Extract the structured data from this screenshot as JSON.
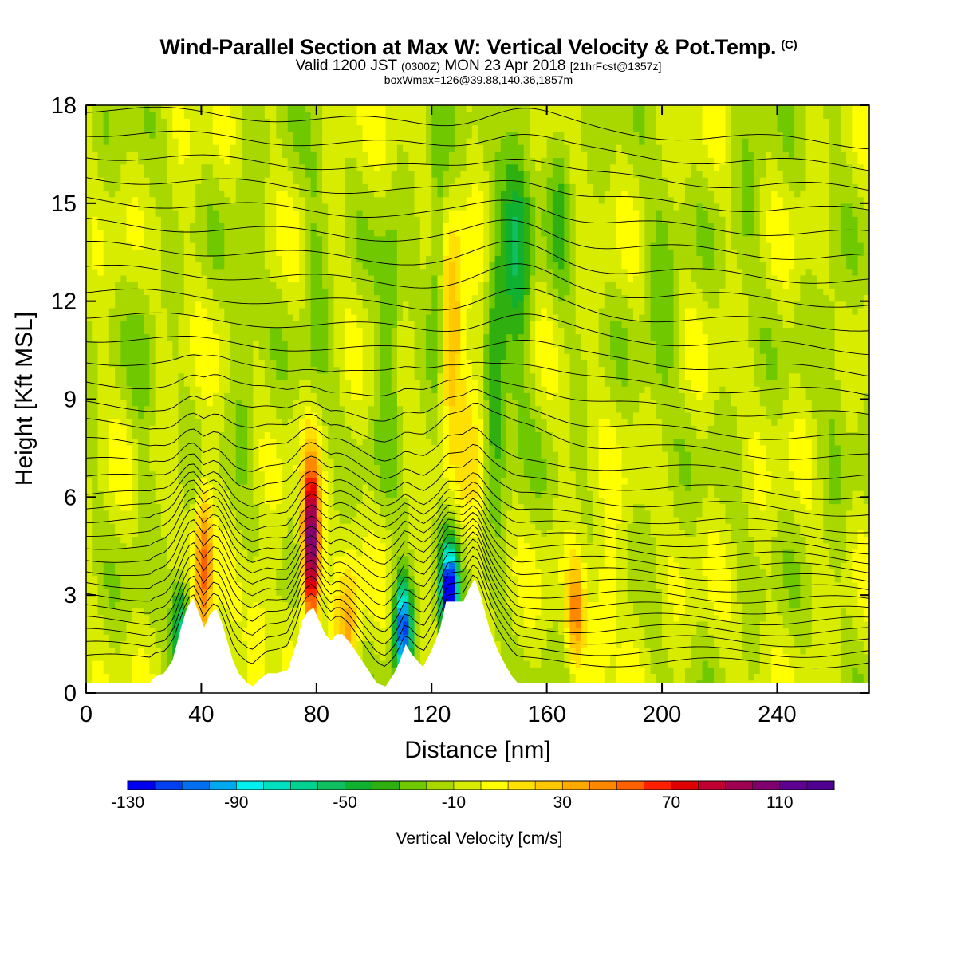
{
  "title": {
    "main": "Wind-Parallel Section at Max W: Vertical Velocity & Pot.Temp.",
    "copyright": "(C)",
    "valid_prefix": "Valid 1200 JST",
    "valid_utc": "(0300Z)",
    "valid_date": "MON 23 Apr 2018",
    "forecast": "[21hrFcst@1357z]",
    "box_info": "boxWmax=126@39.88,140.36,1857m"
  },
  "chart_data": {
    "type": "heatmap",
    "xlabel": "Distance [nm]",
    "ylabel": "Height [Kft MSL]",
    "xlim": [
      0,
      272
    ],
    "ylim": [
      0,
      18
    ],
    "x_ticks": [
      0,
      40,
      80,
      120,
      160,
      200,
      240
    ],
    "y_ticks": [
      0,
      3,
      6,
      9,
      12,
      15,
      18
    ],
    "colorbar": {
      "label": "Vertical Velocity [cm/s]",
      "min": -130,
      "max": 130,
      "step": 10,
      "tick_labels": [
        -130,
        -90,
        -50,
        -10,
        30,
        70,
        110
      ],
      "colors": [
        "#0000f0",
        "#0040f0",
        "#0070f0",
        "#00a8f0",
        "#00f0f0",
        "#00e0c0",
        "#00d090",
        "#10c060",
        "#10b030",
        "#30b010",
        "#70c800",
        "#a8d800",
        "#d8ec00",
        "#ffff00",
        "#ffe000",
        "#ffc800",
        "#ffa800",
        "#ff8800",
        "#ff6000",
        "#ff2000",
        "#e00000",
        "#c00030",
        "#a00050",
        "#800070",
        "#600090",
        "#500090"
      ]
    },
    "terrain_nm_kft": [
      [
        0,
        0.3
      ],
      [
        22,
        0.3
      ],
      [
        24,
        0.5
      ],
      [
        27,
        0.6
      ],
      [
        30,
        1.0
      ],
      [
        33,
        2.0
      ],
      [
        35,
        2.6
      ],
      [
        37,
        2.9
      ],
      [
        39,
        2.5
      ],
      [
        41,
        2.0
      ],
      [
        43,
        2.4
      ],
      [
        45,
        2.6
      ],
      [
        47,
        2.2
      ],
      [
        49,
        1.6
      ],
      [
        51,
        1.0
      ],
      [
        53,
        0.6
      ],
      [
        56,
        0.3
      ],
      [
        58,
        0.2
      ],
      [
        60,
        0.4
      ],
      [
        63,
        0.6
      ],
      [
        66,
        0.6
      ],
      [
        70,
        0.7
      ],
      [
        73,
        1.5
      ],
      [
        75,
        2.2
      ],
      [
        77,
        2.5
      ],
      [
        79,
        2.6
      ],
      [
        81,
        2.2
      ],
      [
        83,
        1.8
      ],
      [
        85,
        1.6
      ],
      [
        87,
        1.8
      ],
      [
        89,
        1.8
      ],
      [
        92,
        1.5
      ],
      [
        95,
        1.1
      ],
      [
        98,
        0.7
      ],
      [
        101,
        0.3
      ],
      [
        104,
        0.2
      ],
      [
        107,
        0.6
      ],
      [
        109,
        1.0
      ],
      [
        111,
        1.5
      ],
      [
        113,
        1.2
      ],
      [
        115,
        1.0
      ],
      [
        117,
        0.8
      ],
      [
        120,
        1.3
      ],
      [
        123,
        2.0
      ],
      [
        125,
        2.8
      ],
      [
        128,
        2.8
      ],
      [
        131,
        2.8
      ],
      [
        133,
        3.2
      ],
      [
        135,
        3.5
      ],
      [
        137,
        3.0
      ],
      [
        140,
        2.0
      ],
      [
        143,
        1.3
      ],
      [
        146,
        0.8
      ],
      [
        148,
        0.5
      ],
      [
        150,
        0.3
      ],
      [
        272,
        0.3
      ]
    ],
    "w_features_nm_kft_cms": [
      [
        78,
        4.5,
        130,
        3,
        2.5
      ],
      [
        41,
        4,
        60,
        3,
        2.5
      ],
      [
        127,
        11,
        40,
        5,
        3
      ],
      [
        142,
        10,
        -40,
        4,
        4
      ],
      [
        110,
        2,
        -110,
        3,
        1.5
      ],
      [
        126,
        3,
        -125,
        3,
        1.5
      ],
      [
        33,
        2,
        -60,
        3,
        1.5
      ],
      [
        170,
        2.5,
        50,
        3,
        1.5
      ],
      [
        91,
        2,
        40,
        4,
        2
      ],
      [
        136,
        9,
        20,
        5,
        4
      ],
      [
        60,
        2,
        20,
        4,
        2
      ],
      [
        150,
        14,
        -35,
        5,
        5
      ],
      [
        105,
        11,
        -30,
        4,
        3
      ],
      [
        122,
        13,
        -30,
        3,
        4
      ],
      [
        165,
        15,
        -20,
        4,
        3
      ],
      [
        200,
        12,
        -15,
        6,
        4
      ],
      [
        55,
        12,
        -15,
        4,
        5
      ],
      [
        80,
        13,
        -15,
        4,
        4
      ],
      [
        20,
        10,
        -10,
        4,
        5
      ],
      [
        260,
        10,
        -10,
        5,
        5
      ],
      [
        230,
        15,
        -10,
        6,
        3
      ],
      [
        180,
        3,
        25,
        5,
        2
      ]
    ],
    "theta_contours_kft": [
      0.8,
      1.2,
      1.6,
      2.0,
      2.4,
      2.8,
      3.2,
      3.6,
      4.0,
      4.4,
      4.8,
      5.2,
      5.6,
      6.0,
      6.5,
      7.0,
      7.6,
      8.2,
      8.8,
      9.5,
      10.2,
      10.9,
      11.6,
      12.3,
      13.0,
      13.7,
      14.4,
      15.1,
      15.8,
      16.5,
      17.2,
      17.9
    ]
  }
}
